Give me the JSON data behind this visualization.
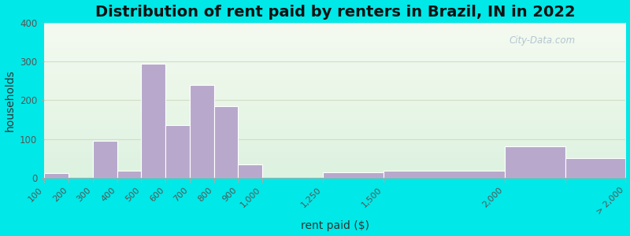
{
  "title": "Distribution of rent paid by renters in Brazil, IN in 2022",
  "xlabel": "rent paid ($)",
  "ylabel": "households",
  "bar_color": "#b8a8cc",
  "bar_edgecolor": "#ffffff",
  "outer_bg": "#00e8e8",
  "plot_bg_top": "#f5faf0",
  "plot_bg_bottom": "#ddf2e0",
  "ylim": [
    0,
    400
  ],
  "yticks": [
    0,
    100,
    200,
    300,
    400
  ],
  "bin_edges": [
    100,
    200,
    300,
    400,
    500,
    600,
    700,
    800,
    900,
    1000,
    1250,
    1500,
    2000,
    2250,
    2500
  ],
  "tick_labels": [
    "100",
    "200",
    "300",
    "400",
    "500",
    "600",
    "700",
    "800",
    "900",
    "1,000",
    "1,250",
    "1,500",
    "2,000",
    "",
    "> 2,000"
  ],
  "values": [
    12,
    0,
    95,
    18,
    295,
    135,
    240,
    185,
    35,
    0,
    15,
    18,
    82,
    50
  ],
  "watermark": "City-Data.com",
  "title_fontsize": 14,
  "axis_label_fontsize": 10,
  "grid_color": "#d0dfc8",
  "tick_color": "#555555"
}
